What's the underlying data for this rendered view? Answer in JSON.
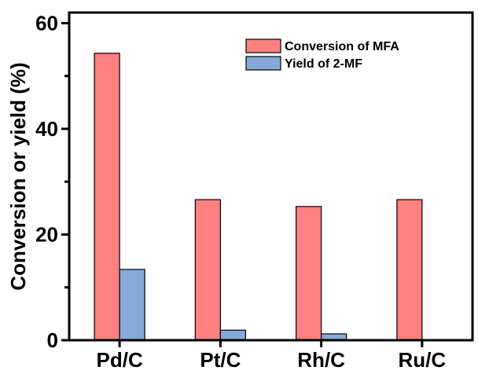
{
  "chart_data": {
    "type": "bar",
    "categories": [
      "Pd/C",
      "Pt/C",
      "Rh/C",
      "Ru/C"
    ],
    "series": [
      {
        "name": "Conversion of MFA",
        "values": [
          54.3,
          26.6,
          25.3,
          26.6
        ],
        "color": "#ff8080"
      },
      {
        "name": "Yield of 2-MF",
        "values": [
          13.4,
          1.9,
          1.2,
          0
        ],
        "color": "#86a9d9"
      }
    ],
    "xlabel": "",
    "ylabel": "Conversion or yield (%)",
    "ylim": [
      0,
      62
    ],
    "yticks": [
      0,
      20,
      40,
      60
    ],
    "grid": false,
    "legend_position": "top-right"
  }
}
